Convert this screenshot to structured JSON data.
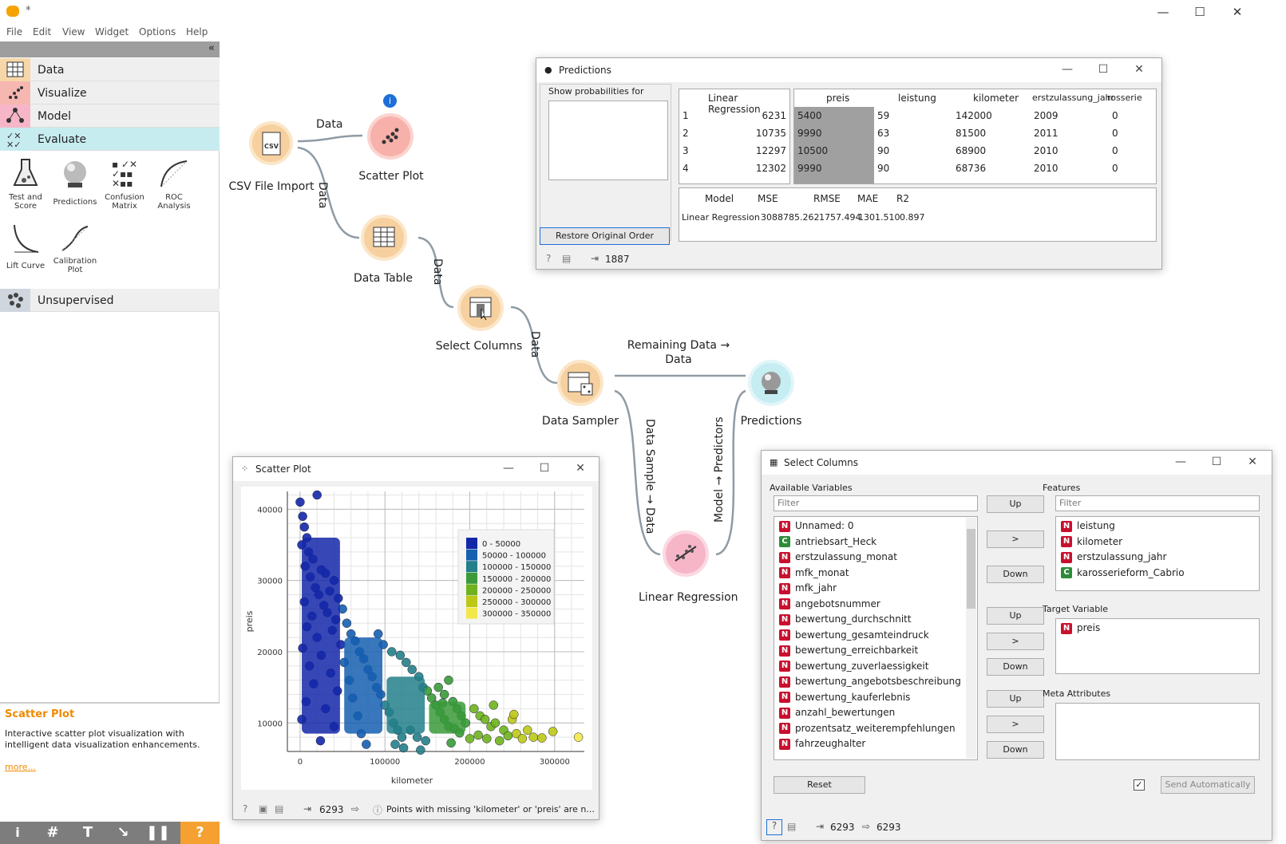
{
  "window": {
    "title": "*",
    "controls": [
      "—",
      "☐",
      "✕"
    ]
  },
  "menu": [
    "File",
    "Edit",
    "View",
    "Widget",
    "Options",
    "Help"
  ],
  "sidebar": {
    "categories": [
      {
        "label": "Data",
        "color": "#f7d7a9"
      },
      {
        "label": "Visualize",
        "color": "#f6b7b0"
      },
      {
        "label": "Model",
        "color": "#f7b6c8"
      },
      {
        "label": "Evaluate",
        "color": "#c7ecf0"
      },
      {
        "label": "Unsupervised",
        "color": "#d0d6de"
      }
    ],
    "tools": [
      "Test and Score",
      "Predictions",
      "Confusion Matrix",
      "ROC Analysis",
      "Lift Curve",
      "Calibration Plot"
    ],
    "description": {
      "title": "Scatter Plot",
      "text": "Interactive scatter plot visualization with intelligent data visualization enhancements.",
      "more": "more..."
    },
    "collapse": "«"
  },
  "canvas": {
    "nodes": {
      "csv": "CSV File Import",
      "scatter": "Scatter Plot",
      "table": "Data Table",
      "select": "Select Columns",
      "sampler": "Data Sampler",
      "predictions": "Predictions",
      "linreg": "Linear Regression"
    },
    "links": {
      "csv_scatter": "Data",
      "csv_table": "Data",
      "table_select": "Data",
      "select_sampler": "Data",
      "sampler_pred_1": "Remaining Data →",
      "sampler_pred_2": "Data",
      "sampler_linreg": "Data Sample → Data",
      "linreg_pred": "Model → Predictors"
    },
    "info_badge": "i"
  },
  "predictions_win": {
    "title": "Predictions",
    "show_probs": "Show probabilities for",
    "left_header": "Linear Regression",
    "columns": [
      "preis",
      "leistung",
      "kilometer",
      "erstzulassung_jahr",
      "rosserie"
    ],
    "rows": [
      {
        "i": "1",
        "lr": "6231",
        "vals": [
          "5400",
          "59",
          "142000",
          "2009",
          "0"
        ]
      },
      {
        "i": "2",
        "lr": "10735",
        "vals": [
          "9990",
          "63",
          "81500",
          "2011",
          "0"
        ]
      },
      {
        "i": "3",
        "lr": "12297",
        "vals": [
          "10500",
          "90",
          "68900",
          "2010",
          "0"
        ]
      },
      {
        "i": "4",
        "lr": "12302",
        "vals": [
          "9990",
          "90",
          "68736",
          "2010",
          "0"
        ]
      }
    ],
    "score_headers": [
      "Model",
      "MSE",
      "RMSE",
      "MAE",
      "R2"
    ],
    "score_row": [
      "Linear Regression",
      "3088785.262",
      "1757.494",
      "1301.510",
      "0.897"
    ],
    "restore": "Restore Original Order",
    "status_count": "1887"
  },
  "scatter_win": {
    "title": "Scatter Plot",
    "status_count": "6293",
    "status_msg": "Points with missing 'kilometer' or 'preis' are n..."
  },
  "select_win": {
    "title": "Select Columns",
    "available_label": "Available Variables",
    "filter_placeholder": "Filter",
    "available": [
      {
        "t": "N",
        "n": "Unnamed: 0"
      },
      {
        "t": "C",
        "n": "antriebsart_Heck"
      },
      {
        "t": "N",
        "n": "erstzulassung_monat"
      },
      {
        "t": "N",
        "n": "mfk_monat"
      },
      {
        "t": "N",
        "n": "mfk_jahr"
      },
      {
        "t": "N",
        "n": "angebotsnummer"
      },
      {
        "t": "N",
        "n": "bewertung_durchschnitt"
      },
      {
        "t": "N",
        "n": "bewertung_gesamteindruck"
      },
      {
        "t": "N",
        "n": "bewertung_erreichbarkeit"
      },
      {
        "t": "N",
        "n": "bewertung_zuverlaessigkeit"
      },
      {
        "t": "N",
        "n": "bewertung_angebotsbeschreibung"
      },
      {
        "t": "N",
        "n": "bewertung_kauferlebnis"
      },
      {
        "t": "N",
        "n": "anzahl_bewertungen"
      },
      {
        "t": "N",
        "n": "prozentsatz_weiterempfehlungen"
      },
      {
        "t": "N",
        "n": "fahrzeughalter"
      }
    ],
    "features_label": "Features",
    "features": [
      {
        "t": "N",
        "n": "leistung"
      },
      {
        "t": "N",
        "n": "kilometer"
      },
      {
        "t": "N",
        "n": "erstzulassung_jahr"
      },
      {
        "t": "C",
        "n": "karosserieform_Cabrio"
      }
    ],
    "target_label": "Target Variable",
    "target": [
      {
        "t": "N",
        "n": "preis"
      }
    ],
    "meta_label": "Meta Attributes",
    "up": "Up",
    "down": "Down",
    "move": ">",
    "reset": "Reset",
    "send": "Send Automatically",
    "status_in": "6293",
    "status_out": "6293",
    "badge_colors": {
      "N": "#c8102e",
      "C": "#2e8b3a"
    }
  },
  "chart_data": {
    "type": "scatter",
    "xlabel": "kilometer",
    "ylabel": "preis",
    "xlim": [
      -15000,
      335000
    ],
    "ylim": [
      6000,
      42500
    ],
    "xticks": [
      0,
      100000,
      200000,
      300000
    ],
    "yticks": [
      10000,
      20000,
      30000,
      40000
    ],
    "xtick_labels": [
      "0",
      "100000",
      "200000",
      "300000"
    ],
    "ytick_labels": [
      "10000",
      "20000",
      "30000",
      "40000"
    ],
    "grid": true,
    "legend_position": "top-right",
    "legend": [
      {
        "label": "0 - 50000",
        "color": "#1427a8"
      },
      {
        "label": "50000 - 100000",
        "color": "#155fb0"
      },
      {
        "label": "100000 - 150000",
        "color": "#237f89"
      },
      {
        "label": "150000 - 200000",
        "color": "#3a9a3a"
      },
      {
        "label": "200000 - 250000",
        "color": "#6fb21e"
      },
      {
        "label": "250000 - 300000",
        "color": "#bcc816"
      },
      {
        "label": "300000 - 350000",
        "color": "#f2e84a"
      }
    ],
    "points": [
      [
        0,
        41000
      ],
      [
        20000,
        42000
      ],
      [
        3000,
        39000
      ],
      [
        5000,
        37500
      ],
      [
        8000,
        36000
      ],
      [
        2000,
        35000
      ],
      [
        10000,
        34000
      ],
      [
        15000,
        33000
      ],
      [
        6000,
        32000
      ],
      [
        25000,
        31500
      ],
      [
        30000,
        31000
      ],
      [
        12000,
        30500
      ],
      [
        40000,
        30000
      ],
      [
        18000,
        29000
      ],
      [
        35000,
        28500
      ],
      [
        22000,
        28000
      ],
      [
        45000,
        27500
      ],
      [
        5000,
        27000
      ],
      [
        28000,
        26500
      ],
      [
        50000,
        26000
      ],
      [
        32000,
        25500
      ],
      [
        14000,
        25000
      ],
      [
        42000,
        24500
      ],
      [
        55000,
        24000
      ],
      [
        8000,
        23500
      ],
      [
        38000,
        23000
      ],
      [
        60000,
        22500
      ],
      [
        20000,
        22000
      ],
      [
        65000,
        21500
      ],
      [
        48000,
        21000
      ],
      [
        3000,
        20500
      ],
      [
        70000,
        20000
      ],
      [
        25000,
        19500
      ],
      [
        75000,
        19000
      ],
      [
        52000,
        18500
      ],
      [
        11000,
        18000
      ],
      [
        80000,
        17500
      ],
      [
        36000,
        17000
      ],
      [
        85000,
        16500
      ],
      [
        58000,
        16000
      ],
      [
        16000,
        15500
      ],
      [
        90000,
        15000
      ],
      [
        44000,
        14500
      ],
      [
        95000,
        14000
      ],
      [
        62000,
        13500
      ],
      [
        7000,
        13000
      ],
      [
        100000,
        12500
      ],
      [
        30000,
        12000
      ],
      [
        105000,
        11500
      ],
      [
        68000,
        11000
      ],
      [
        2000,
        10500
      ],
      [
        110000,
        10000
      ],
      [
        40000,
        9500
      ],
      [
        115000,
        9000
      ],
      [
        72000,
        8500
      ],
      [
        120000,
        8000
      ],
      [
        24000,
        7500
      ],
      [
        78000,
        7000
      ],
      [
        92000,
        22500
      ],
      [
        98000,
        21000
      ],
      [
        108000,
        20000
      ],
      [
        118000,
        19500
      ],
      [
        125000,
        18500
      ],
      [
        132000,
        17500
      ],
      [
        140000,
        16500
      ],
      [
        145000,
        15000
      ],
      [
        150000,
        14500
      ],
      [
        155000,
        13500
      ],
      [
        160000,
        12500
      ],
      [
        165000,
        11500
      ],
      [
        170000,
        10500
      ],
      [
        175000,
        9500
      ],
      [
        130000,
        9000
      ],
      [
        138000,
        8000
      ],
      [
        148000,
        7500
      ],
      [
        112000,
        7000
      ],
      [
        122000,
        6500
      ],
      [
        142000,
        6200
      ],
      [
        163000,
        15000
      ],
      [
        170000,
        14000
      ],
      [
        180000,
        13000
      ],
      [
        185000,
        12000
      ],
      [
        190000,
        11000
      ],
      [
        195000,
        10000
      ],
      [
        175000,
        16000
      ],
      [
        168000,
        12800
      ],
      [
        182000,
        9200
      ],
      [
        188000,
        8600
      ],
      [
        200000,
        7800
      ],
      [
        178000,
        7200
      ],
      [
        205000,
        12000
      ],
      [
        212000,
        11000
      ],
      [
        218000,
        10500
      ],
      [
        225000,
        9500
      ],
      [
        230000,
        10000
      ],
      [
        240000,
        9000
      ],
      [
        245000,
        8200
      ],
      [
        235000,
        7500
      ],
      [
        210000,
        8300
      ],
      [
        220000,
        7800
      ],
      [
        228000,
        12500
      ],
      [
        250000,
        10500
      ],
      [
        255000,
        8500
      ],
      [
        262000,
        7800
      ],
      [
        268000,
        9000
      ],
      [
        275000,
        8000
      ],
      [
        285000,
        7900
      ],
      [
        298000,
        8800
      ],
      [
        252000,
        11200
      ],
      [
        328000,
        8000
      ]
    ]
  }
}
